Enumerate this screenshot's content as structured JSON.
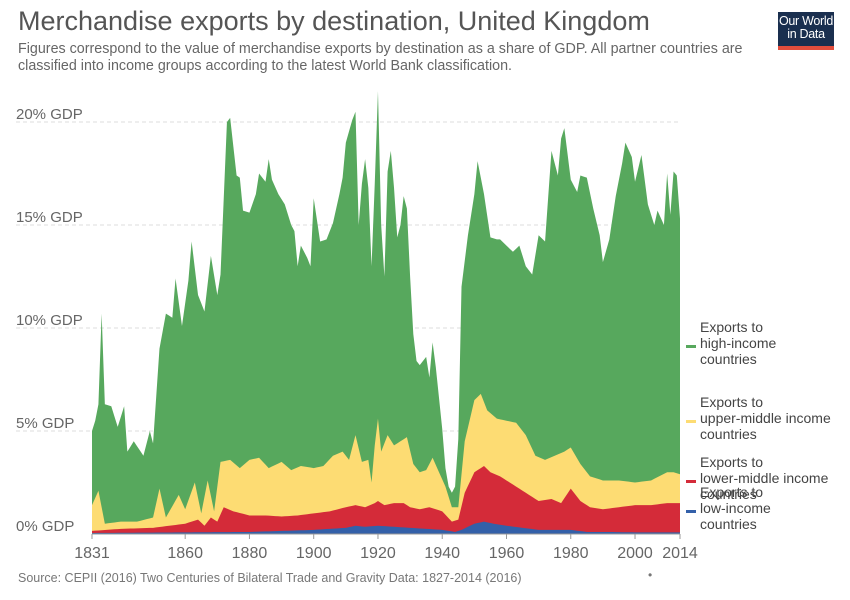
{
  "header": {
    "title": "Merchandise exports by destination, United Kingdom",
    "subtitle": "Figures correspond to the value of merchandise exports by destination as a share of GDP. All partner countries are classified into income groups according to the latest World Bank classification."
  },
  "logo": {
    "line1": "Our World",
    "line2": "in Data"
  },
  "footer": {
    "source": "Source: CEPII (2016) Two Centuries of Bilateral Trade and Gravity Data: 1827-2014 (2016)",
    "dot": "•"
  },
  "chart_data": {
    "type": "area",
    "stacked": true,
    "x_axis": {
      "min": 1831,
      "max": 2014,
      "ticks": [
        1831,
        1860,
        1880,
        1900,
        1920,
        1940,
        1960,
        1980,
        2000,
        2014
      ]
    },
    "y_axis": {
      "min": 0,
      "max": 20,
      "ticks": [
        0,
        5,
        10,
        15,
        20
      ],
      "tick_labels": [
        "0% GDP",
        "5% GDP",
        "10% GDP",
        "15% GDP",
        "20% GDP"
      ]
    },
    "grid": true,
    "legend_position": "right",
    "series": [
      {
        "name": "Exports to low-income countries",
        "label_lines": [
          "Exports to",
          "low-income",
          "countries"
        ],
        "color": "#3360a9",
        "points": [
          [
            1831,
            0.05
          ],
          [
            1880,
            0.1
          ],
          [
            1890,
            0.15
          ],
          [
            1900,
            0.2
          ],
          [
            1910,
            0.3
          ],
          [
            1913,
            0.4
          ],
          [
            1916,
            0.35
          ],
          [
            1920,
            0.4
          ],
          [
            1925,
            0.35
          ],
          [
            1930,
            0.3
          ],
          [
            1935,
            0.25
          ],
          [
            1940,
            0.2
          ],
          [
            1944,
            0.1
          ],
          [
            1946,
            0.2
          ],
          [
            1950,
            0.5
          ],
          [
            1953,
            0.6
          ],
          [
            1956,
            0.5
          ],
          [
            1960,
            0.4
          ],
          [
            1965,
            0.3
          ],
          [
            1970,
            0.2
          ],
          [
            1975,
            0.2
          ],
          [
            1980,
            0.2
          ],
          [
            1985,
            0.1
          ],
          [
            1990,
            0.1
          ],
          [
            2000,
            0.08
          ],
          [
            2014,
            0.08
          ]
        ]
      },
      {
        "name": "Exports to lower-middle income countries",
        "label_lines": [
          "Exports to",
          "lower-middle income",
          "countries"
        ],
        "color": "#d42b39",
        "points": [
          [
            1831,
            0.15
          ],
          [
            1840,
            0.25
          ],
          [
            1850,
            0.3
          ],
          [
            1855,
            0.4
          ],
          [
            1860,
            0.5
          ],
          [
            1864,
            0.7
          ],
          [
            1866,
            0.4
          ],
          [
            1868,
            0.8
          ],
          [
            1870,
            0.6
          ],
          [
            1872,
            1.3
          ],
          [
            1875,
            1.1
          ],
          [
            1880,
            0.9
          ],
          [
            1885,
            0.9
          ],
          [
            1890,
            0.85
          ],
          [
            1895,
            0.9
          ],
          [
            1900,
            1.0
          ],
          [
            1905,
            1.1
          ],
          [
            1910,
            1.3
          ],
          [
            1913,
            1.4
          ],
          [
            1916,
            1.3
          ],
          [
            1919,
            1.5
          ],
          [
            1920,
            1.6
          ],
          [
            1922,
            1.4
          ],
          [
            1925,
            1.5
          ],
          [
            1928,
            1.5
          ],
          [
            1930,
            1.3
          ],
          [
            1933,
            1.2
          ],
          [
            1936,
            1.3
          ],
          [
            1940,
            1.1
          ],
          [
            1943,
            0.6
          ],
          [
            1945,
            0.7
          ],
          [
            1947,
            2.0
          ],
          [
            1950,
            3.0
          ],
          [
            1953,
            3.3
          ],
          [
            1955,
            3.0
          ],
          [
            1958,
            2.8
          ],
          [
            1960,
            2.6
          ],
          [
            1963,
            2.3
          ],
          [
            1966,
            2.0
          ],
          [
            1970,
            1.6
          ],
          [
            1974,
            1.7
          ],
          [
            1977,
            1.5
          ],
          [
            1980,
            2.2
          ],
          [
            1983,
            1.6
          ],
          [
            1986,
            1.3
          ],
          [
            1990,
            1.2
          ],
          [
            1995,
            1.3
          ],
          [
            2000,
            1.4
          ],
          [
            2005,
            1.4
          ],
          [
            2010,
            1.5
          ],
          [
            2014,
            1.5
          ]
        ]
      },
      {
        "name": "Exports to upper-middle income countries",
        "label_lines": [
          "Exports to",
          "upper-middle income",
          "countries"
        ],
        "color": "#fddc73",
        "points": [
          [
            1831,
            1.4
          ],
          [
            1833,
            2.1
          ],
          [
            1835,
            0.5
          ],
          [
            1840,
            0.6
          ],
          [
            1845,
            0.6
          ],
          [
            1850,
            0.8
          ],
          [
            1852,
            2.2
          ],
          [
            1854,
            0.8
          ],
          [
            1858,
            1.9
          ],
          [
            1860,
            1.2
          ],
          [
            1863,
            2.5
          ],
          [
            1865,
            1.0
          ],
          [
            1867,
            2.6
          ],
          [
            1869,
            1.1
          ],
          [
            1871,
            3.5
          ],
          [
            1874,
            3.6
          ],
          [
            1877,
            3.2
          ],
          [
            1880,
            3.6
          ],
          [
            1883,
            3.7
          ],
          [
            1886,
            3.2
          ],
          [
            1890,
            3.5
          ],
          [
            1893,
            3.1
          ],
          [
            1896,
            3.3
          ],
          [
            1900,
            3.2
          ],
          [
            1903,
            3.3
          ],
          [
            1906,
            3.8
          ],
          [
            1909,
            4.0
          ],
          [
            1911,
            3.6
          ],
          [
            1913,
            4.8
          ],
          [
            1915,
            3.5
          ],
          [
            1917,
            3.6
          ],
          [
            1918,
            2.5
          ],
          [
            1919,
            4.3
          ],
          [
            1920,
            5.6
          ],
          [
            1921,
            4.0
          ],
          [
            1923,
            4.8
          ],
          [
            1925,
            4.3
          ],
          [
            1927,
            4.5
          ],
          [
            1929,
            4.7
          ],
          [
            1931,
            3.4
          ],
          [
            1933,
            3.0
          ],
          [
            1935,
            3.1
          ],
          [
            1937,
            3.7
          ],
          [
            1939,
            3.0
          ],
          [
            1941,
            2.3
          ],
          [
            1943,
            1.3
          ],
          [
            1945,
            1.3
          ],
          [
            1947,
            4.5
          ],
          [
            1950,
            6.5
          ],
          [
            1952,
            6.8
          ],
          [
            1954,
            6.0
          ],
          [
            1957,
            5.6
          ],
          [
            1960,
            5.5
          ],
          [
            1963,
            5.4
          ],
          [
            1966,
            4.8
          ],
          [
            1969,
            3.8
          ],
          [
            1972,
            3.6
          ],
          [
            1975,
            3.8
          ],
          [
            1978,
            4.0
          ],
          [
            1980,
            4.2
          ],
          [
            1983,
            3.4
          ],
          [
            1986,
            2.8
          ],
          [
            1990,
            2.6
          ],
          [
            1995,
            2.6
          ],
          [
            2000,
            2.5
          ],
          [
            2005,
            2.6
          ],
          [
            2010,
            3.0
          ],
          [
            2012,
            3.0
          ],
          [
            2014,
            2.9
          ]
        ]
      },
      {
        "name": "Exports to high-income countries",
        "label_lines": [
          "Exports to",
          "high-income",
          "countries"
        ],
        "color": "#57a85d",
        "points": [
          [
            1831,
            5.0
          ],
          [
            1832,
            5.5
          ],
          [
            1833,
            6.3
          ],
          [
            1834,
            10.7
          ],
          [
            1835,
            6.3
          ],
          [
            1837,
            6.2
          ],
          [
            1839,
            5.2
          ],
          [
            1841,
            6.2
          ],
          [
            1842,
            4.0
          ],
          [
            1844,
            4.5
          ],
          [
            1847,
            3.8
          ],
          [
            1849,
            5.0
          ],
          [
            1850,
            4.4
          ],
          [
            1852,
            9.0
          ],
          [
            1854,
            10.7
          ],
          [
            1856,
            10.5
          ],
          [
            1857,
            12.4
          ],
          [
            1859,
            10.1
          ],
          [
            1861,
            12.3
          ],
          [
            1862,
            14.2
          ],
          [
            1864,
            11.6
          ],
          [
            1866,
            10.8
          ],
          [
            1868,
            13.5
          ],
          [
            1870,
            11.6
          ],
          [
            1871,
            12.6
          ],
          [
            1873,
            20.0
          ],
          [
            1874,
            20.2
          ],
          [
            1876,
            17.4
          ],
          [
            1877,
            17.3
          ],
          [
            1878,
            15.7
          ],
          [
            1880,
            15.6
          ],
          [
            1882,
            16.5
          ],
          [
            1883,
            17.5
          ],
          [
            1885,
            17.1
          ],
          [
            1886,
            18.2
          ],
          [
            1887,
            17.2
          ],
          [
            1889,
            16.5
          ],
          [
            1891,
            16.0
          ],
          [
            1893,
            15.0
          ],
          [
            1894,
            14.7
          ],
          [
            1895,
            13.0
          ],
          [
            1896,
            14.0
          ],
          [
            1898,
            13.4
          ],
          [
            1899,
            13.0
          ],
          [
            1900,
            16.3
          ],
          [
            1902,
            14.2
          ],
          [
            1904,
            14.3
          ],
          [
            1906,
            15.1
          ],
          [
            1908,
            16.5
          ],
          [
            1909,
            17.3
          ],
          [
            1910,
            19.0
          ],
          [
            1912,
            20.1
          ],
          [
            1913,
            20.5
          ],
          [
            1914,
            15.0
          ],
          [
            1915,
            17.0
          ],
          [
            1916,
            18.2
          ],
          [
            1917,
            16.8
          ],
          [
            1918,
            13.0
          ],
          [
            1919,
            17.0
          ],
          [
            1920,
            21.5
          ],
          [
            1921,
            15.0
          ],
          [
            1922,
            12.5
          ],
          [
            1923,
            17.6
          ],
          [
            1924,
            18.6
          ],
          [
            1925,
            16.8
          ],
          [
            1926,
            14.4
          ],
          [
            1927,
            15.0
          ],
          [
            1928,
            16.4
          ],
          [
            1929,
            15.8
          ],
          [
            1930,
            12.5
          ],
          [
            1931,
            9.7
          ],
          [
            1932,
            8.4
          ],
          [
            1933,
            8.2
          ],
          [
            1935,
            8.6
          ],
          [
            1936,
            7.6
          ],
          [
            1937,
            9.3
          ],
          [
            1938,
            8.1
          ],
          [
            1940,
            5.1
          ],
          [
            1941,
            3.2
          ],
          [
            1942,
            2.3
          ],
          [
            1943,
            2.0
          ],
          [
            1944,
            2.3
          ],
          [
            1945,
            4.6
          ],
          [
            1946,
            12.0
          ],
          [
            1948,
            14.5
          ],
          [
            1950,
            16.5
          ],
          [
            1951,
            18.1
          ],
          [
            1953,
            16.5
          ],
          [
            1955,
            14.4
          ],
          [
            1957,
            14.3
          ],
          [
            1958,
            14.3
          ],
          [
            1960,
            14.0
          ],
          [
            1962,
            13.7
          ],
          [
            1964,
            14.0
          ],
          [
            1966,
            13.0
          ],
          [
            1968,
            12.6
          ],
          [
            1970,
            14.5
          ],
          [
            1972,
            14.2
          ],
          [
            1974,
            18.6
          ],
          [
            1976,
            17.4
          ],
          [
            1977,
            19.2
          ],
          [
            1978,
            19.7
          ],
          [
            1980,
            17.2
          ],
          [
            1982,
            16.6
          ],
          [
            1983,
            17.4
          ],
          [
            1985,
            17.3
          ],
          [
            1987,
            15.8
          ],
          [
            1989,
            14.5
          ],
          [
            1990,
            13.2
          ],
          [
            1992,
            14.3
          ],
          [
            1994,
            16.4
          ],
          [
            1996,
            18.0
          ],
          [
            1997,
            19.0
          ],
          [
            1999,
            18.3
          ],
          [
            2000,
            17.1
          ],
          [
            2002,
            18.4
          ],
          [
            2004,
            16.0
          ],
          [
            2006,
            15.0
          ],
          [
            2007,
            15.7
          ],
          [
            2009,
            15.0
          ],
          [
            2010,
            17.5
          ],
          [
            2011,
            15.5
          ],
          [
            2012,
            17.6
          ],
          [
            2013,
            17.4
          ],
          [
            2014,
            15.3
          ]
        ]
      }
    ]
  }
}
